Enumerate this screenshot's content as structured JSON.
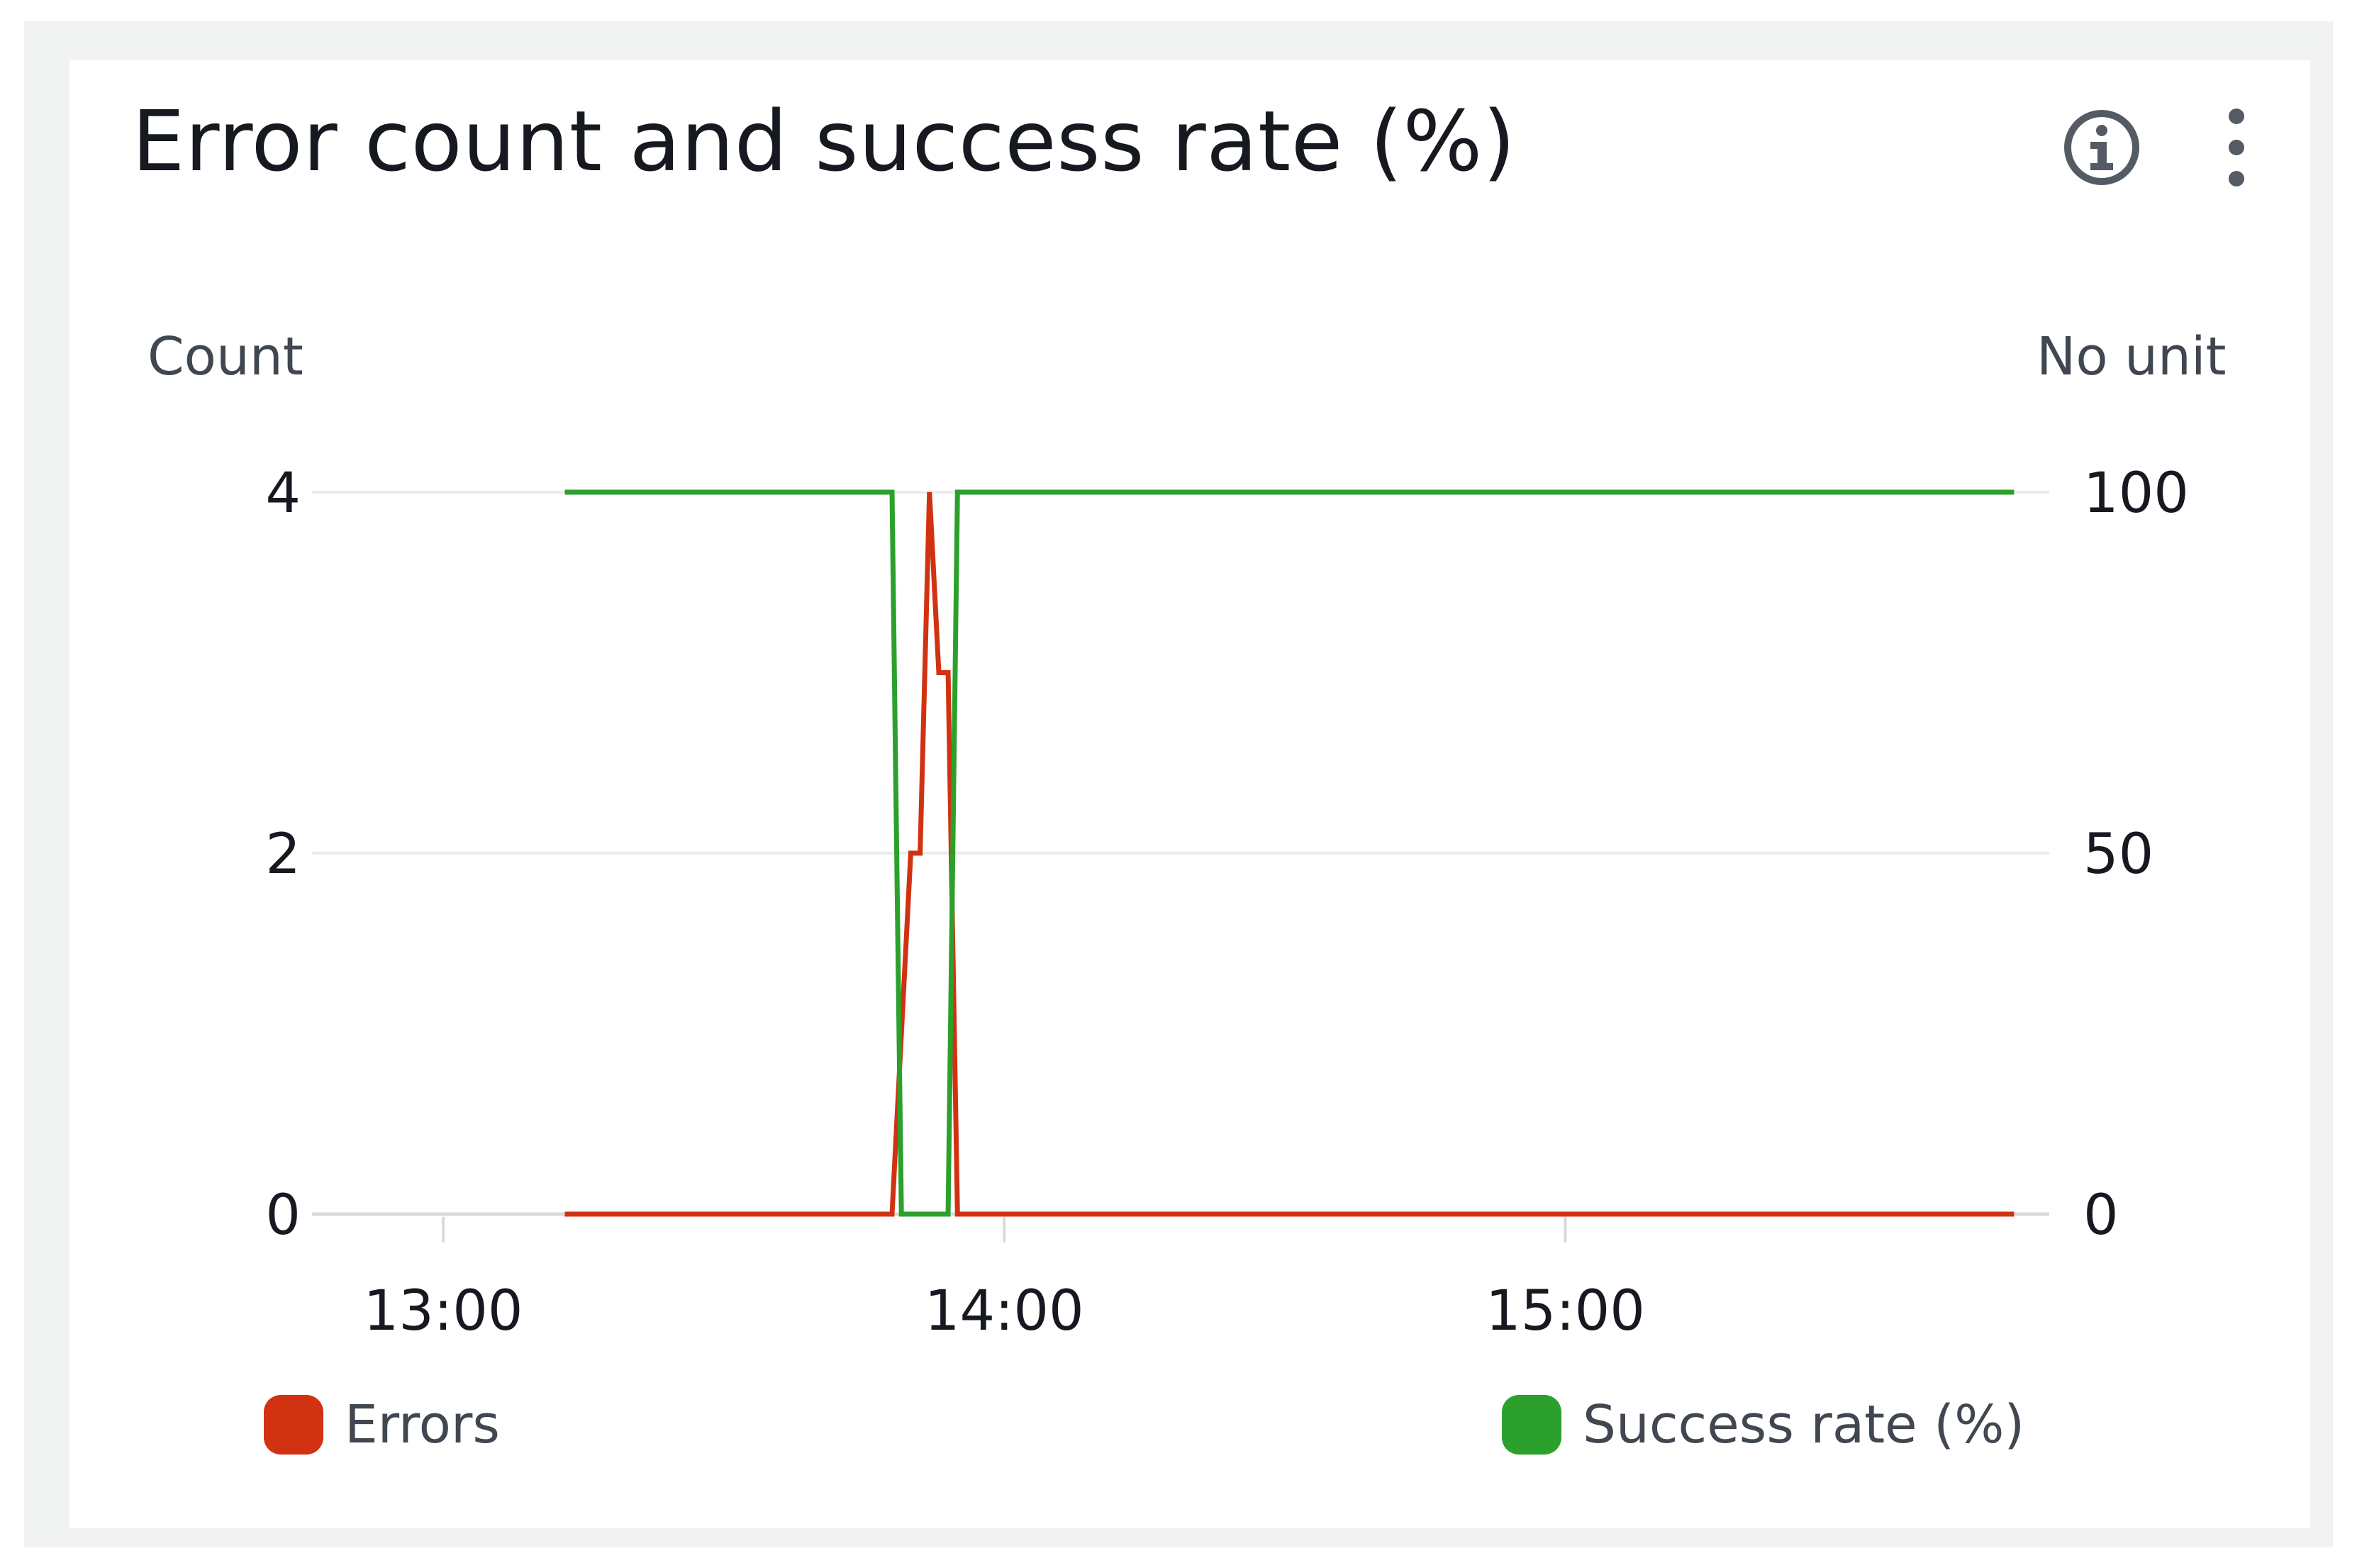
{
  "widget": {
    "title": "Error count and success rate (%)",
    "info_icon": "info-circle-icon",
    "menu_icon": "vertical-ellipsis-icon"
  },
  "chart_data": {
    "type": "line",
    "title": "Error count and success rate (%)",
    "y_left": {
      "label": "Count",
      "ticks": [
        "0",
        "2",
        "4"
      ],
      "range": [
        0,
        4
      ]
    },
    "y_right": {
      "label": "No unit",
      "ticks": [
        "0",
        "50",
        "100"
      ],
      "range": [
        0,
        100
      ]
    },
    "x": {
      "ticks": [
        "13:00",
        "14:00",
        "15:00"
      ],
      "range": [
        "12:49",
        "15:51"
      ]
    },
    "series": [
      {
        "name": "Errors",
        "axis": "left",
        "color": "#d13212",
        "points": [
          [
            "13:13",
            0
          ],
          [
            "13:48",
            0
          ],
          [
            "13:50",
            2
          ],
          [
            "13:51",
            2
          ],
          [
            "13:52",
            4
          ],
          [
            "13:53",
            3
          ],
          [
            "13:54",
            3
          ],
          [
            "13:55",
            0
          ],
          [
            "15:48",
            0
          ]
        ]
      },
      {
        "name": "Success rate (%)",
        "axis": "right",
        "color": "#2ca02c",
        "points": [
          [
            "13:13",
            100
          ],
          [
            "13:48",
            100
          ],
          [
            "13:49",
            0
          ],
          [
            "13:54",
            0
          ],
          [
            "13:55",
            100
          ],
          [
            "15:48",
            100
          ]
        ]
      }
    ],
    "gridlines": true,
    "legend_position": "bottom"
  }
}
